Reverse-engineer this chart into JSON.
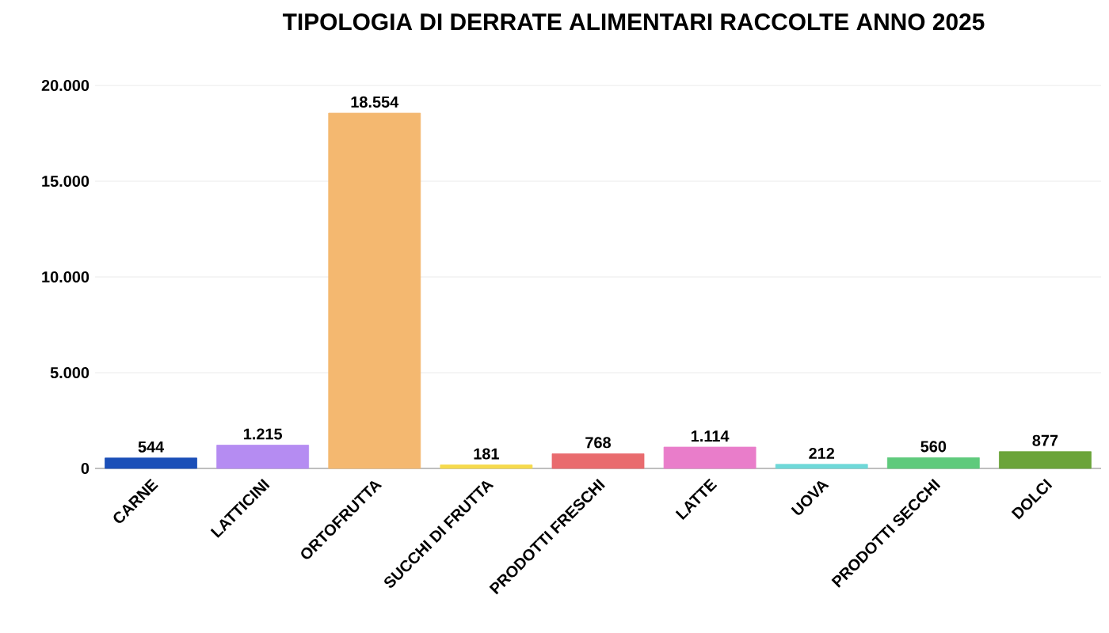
{
  "chart_data": {
    "type": "bar",
    "title": "TIPOLOGIA DI DERRATE ALIMENTARI RACCOLTE ANNO 2025",
    "categories": [
      "CARNE",
      "LATTICINI",
      "ORTOFRUTTA",
      "SUCCHI DI FRUTTA",
      "PRODOTTI FRESCHI",
      "LATTE",
      "UOVA",
      "PRODOTTI SECCHI",
      "DOLCI"
    ],
    "values": [
      544,
      1215,
      18554,
      181,
      768,
      1114,
      212,
      560,
      877
    ],
    "value_labels": [
      "544",
      "1.215",
      "18.554",
      "181",
      "768",
      "1.114",
      "212",
      "560",
      "877"
    ],
    "colors": [
      "#1b4fb8",
      "#b58cf2",
      "#f4b870",
      "#f6da4c",
      "#e96b6e",
      "#e97dca",
      "#6fd8d8",
      "#5fca7c",
      "#6ba43a"
    ],
    "ylim": [
      0,
      20000
    ],
    "yticks": [
      0,
      {
        "value": 5000,
        "label": "5.000"
      },
      {
        "value": 10000,
        "label": "10.000"
      },
      {
        "value": 15000,
        "label": "15.000"
      },
      {
        "value": 20000,
        "label": "20.000"
      }
    ],
    "grid": "y"
  }
}
